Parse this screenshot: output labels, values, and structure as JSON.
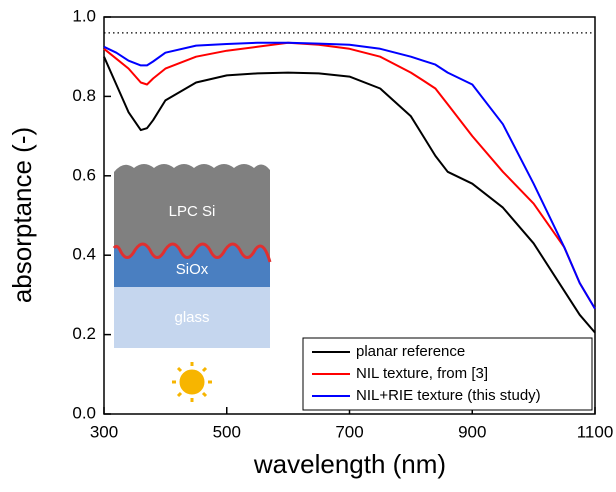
{
  "chart_data": {
    "type": "line",
    "x_label": "wavelength (nm)",
    "y_label": "absorptance (-)",
    "x": [
      300,
      320,
      340,
      360,
      370,
      380,
      400,
      450,
      500,
      550,
      600,
      650,
      700,
      750,
      800,
      820,
      840,
      860,
      900,
      950,
      1000,
      1050,
      1075,
      1100
    ],
    "series": [
      {
        "name": "planar reference",
        "color": "#000000",
        "values": [
          0.9,
          0.83,
          0.76,
          0.715,
          0.72,
          0.74,
          0.79,
          0.835,
          0.853,
          0.858,
          0.86,
          0.858,
          0.85,
          0.82,
          0.75,
          0.7,
          0.65,
          0.61,
          0.58,
          0.52,
          0.43,
          0.31,
          0.25,
          0.205
        ]
      },
      {
        "name": "NIL texture, from [3]",
        "color": "#ff0000",
        "values": [
          0.92,
          0.895,
          0.87,
          0.835,
          0.83,
          0.845,
          0.87,
          0.9,
          0.915,
          0.925,
          0.935,
          0.93,
          0.92,
          0.9,
          0.86,
          0.84,
          0.82,
          0.78,
          0.7,
          0.61,
          0.53,
          0.42,
          0.33,
          0.265
        ]
      },
      {
        "name": "NIL+RIE texture (this study)",
        "color": "#0000ff",
        "values": [
          0.925,
          0.91,
          0.89,
          0.878,
          0.878,
          0.888,
          0.91,
          0.928,
          0.932,
          0.935,
          0.935,
          0.933,
          0.93,
          0.92,
          0.9,
          0.89,
          0.88,
          0.86,
          0.83,
          0.73,
          0.58,
          0.42,
          0.33,
          0.265
        ]
      }
    ],
    "reference_line": 0.96,
    "xlim": [
      300,
      1100
    ],
    "xticks": [
      300,
      500,
      700,
      900,
      1100
    ],
    "ylim": [
      0,
      1
    ],
    "yticks": [
      {
        "value": 0,
        "label": "0.0"
      },
      0.2,
      0.4,
      0.6,
      0.8,
      {
        "value": 1,
        "label": "1.0"
      }
    ],
    "legend": "lower right",
    "inset_labels": [
      "LPC Si",
      "SiOx",
      "glass"
    ]
  }
}
